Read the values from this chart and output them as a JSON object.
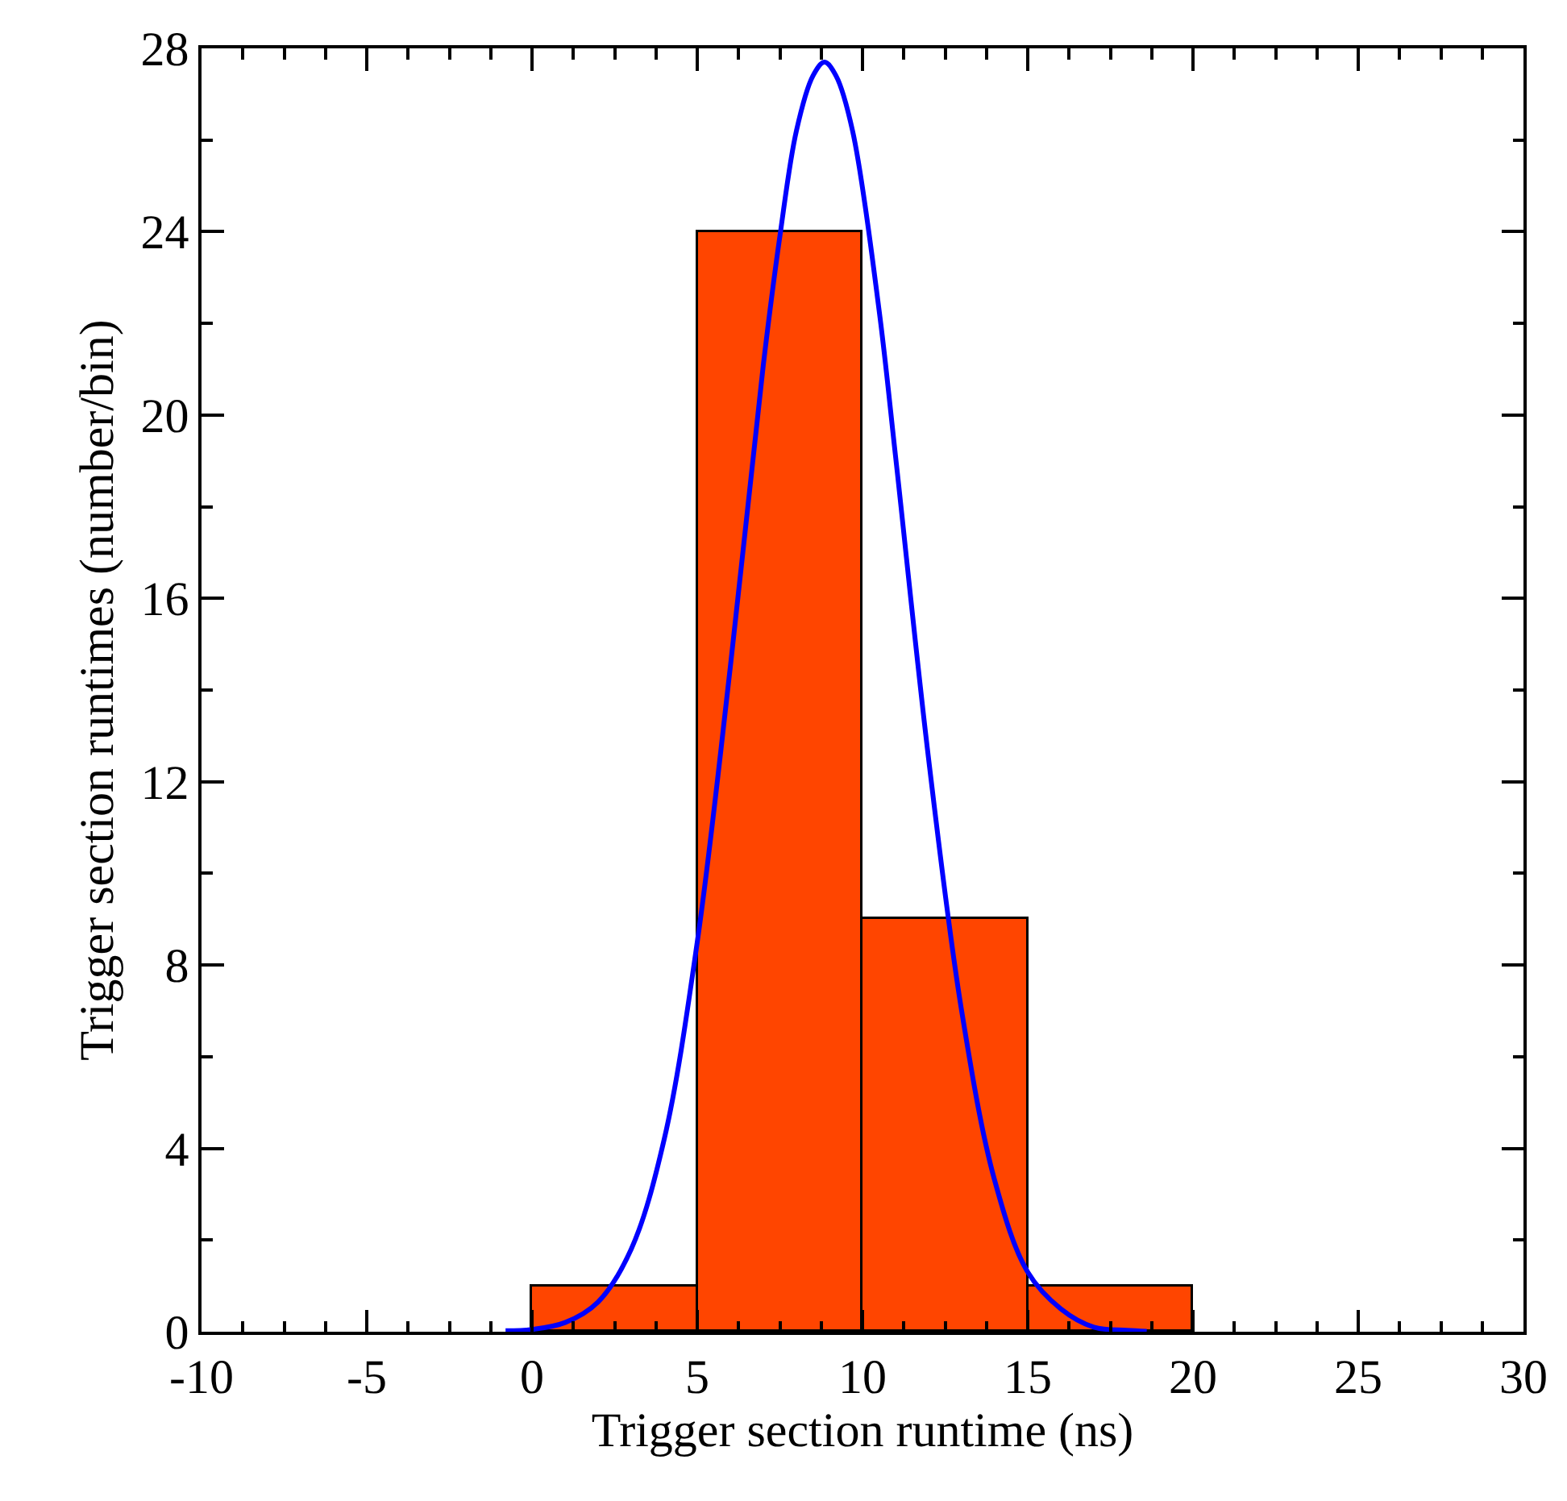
{
  "chart_data": {
    "type": "histogram",
    "xlabel": "Trigger section runtime (ns)",
    "ylabel": "Trigger section runtimes (number/bin)",
    "bins": [
      0,
      5,
      10,
      15,
      20
    ],
    "values": [
      1,
      24,
      9,
      1
    ],
    "color": "#ff4500",
    "series": [
      {
        "type": "line",
        "color": "#0000ff",
        "x": [
          -0.8,
          0,
          1,
          2,
          3,
          4,
          5,
          6,
          7,
          7.5,
          8,
          8.5,
          8.85,
          9.2,
          9.7,
          10.5,
          11,
          12,
          13,
          14,
          15,
          16,
          17,
          18,
          18.6
        ],
        "values": [
          0.02,
          0.05,
          0.2,
          0.65,
          1.8,
          4.2,
          8.5,
          14.5,
          21.1,
          23.9,
          26.2,
          27.4,
          27.7,
          27.4,
          26.2,
          22.3,
          19.1,
          12.5,
          7.0,
          3.3,
          1.3,
          0.5,
          0.1,
          0.03,
          0.01
        ]
      }
    ],
    "xlim": [
      -10,
      30
    ],
    "xticks": [
      -10,
      -5,
      0,
      5,
      10,
      15,
      20,
      25,
      30
    ],
    "ylim": [
      0,
      28
    ],
    "yticks": [
      0,
      4,
      8,
      12,
      16,
      20,
      24,
      28
    ]
  }
}
